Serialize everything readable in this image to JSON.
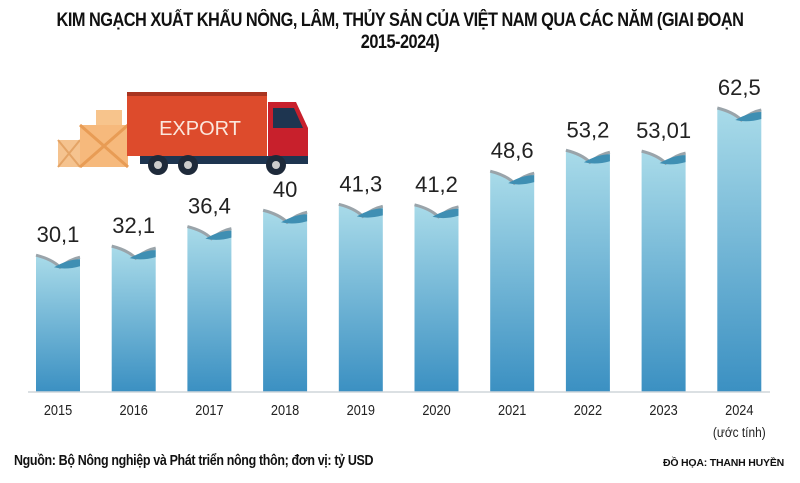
{
  "chart_data": {
    "type": "bar",
    "title": "KIM NGẠCH XUẤT KHẨU NÔNG, LÂM, THỦY SẢN CỦA VIỆT NAM QUA CÁC NĂM (GIAI ĐOẠN 2015-2024)",
    "categories": [
      "2015",
      "2016",
      "2017",
      "2018",
      "2019",
      "2020",
      "2021",
      "2022",
      "2023",
      "2024"
    ],
    "category_notes": [
      "",
      "",
      "",
      "",
      "",
      "",
      "",
      "",
      "",
      "(ước tính)"
    ],
    "values": [
      30.1,
      32.1,
      36.4,
      40,
      41.3,
      41.2,
      48.6,
      53.2,
      53.01,
      62.5
    ],
    "value_labels": [
      "30,1",
      "32,1",
      "36,4",
      "40",
      "41,3",
      "41,2",
      "48,6",
      "53,2",
      "53,01",
      "62,5"
    ],
    "xlabel": "",
    "ylabel": "",
    "unit": "tỷ USD",
    "ylim": [
      0,
      62.5
    ],
    "grid": false,
    "colors": {
      "bar_top": "#a9dbe9",
      "bar_bottom": "#3b90c2",
      "wave_dark": "#3f8fb3",
      "wave_gray": "#9aa4aa",
      "label": "#222222"
    }
  },
  "illustration": {
    "truck_text": "EXPORT"
  },
  "footer": {
    "source": "Nguồn: Bộ Nông nghiệp và Phát triển nông thôn; đơn vị: tỷ USD",
    "credit": "ĐỒ HỌA: THANH HUYỀN"
  }
}
